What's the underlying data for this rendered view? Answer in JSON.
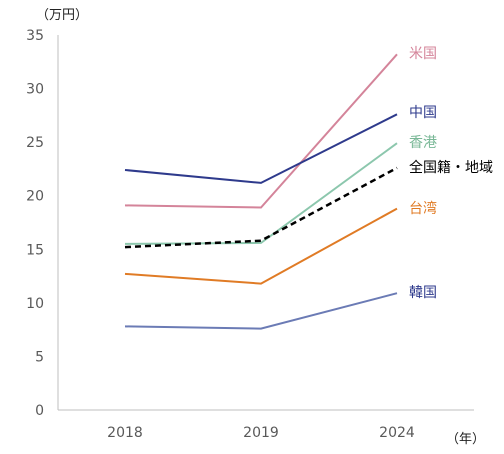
{
  "chart_data": {
    "type": "line",
    "title": "",
    "x_unit_label": "（年）",
    "y_unit_label": "（万円）",
    "categories": [
      "2018",
      "2019",
      "2024"
    ],
    "ylim": [
      0,
      35
    ],
    "yticks": [
      0,
      5,
      10,
      15,
      20,
      25,
      30,
      35
    ],
    "grid": false,
    "legend": "direct labels at line ends (right)",
    "series": [
      {
        "name": "米国",
        "values": [
          19.1,
          18.9,
          33.2
        ],
        "color": "#d4849a",
        "dash": false
      },
      {
        "name": "中国",
        "values": [
          22.4,
          21.2,
          27.6
        ],
        "color": "#2e3a8c",
        "dash": false
      },
      {
        "name": "香港",
        "values": [
          15.5,
          15.6,
          24.9
        ],
        "color": "#8cc7ad",
        "dash": false
      },
      {
        "name": "全国籍・地域",
        "values": [
          15.2,
          15.8,
          22.6
        ],
        "color": "#000000",
        "dash": true
      },
      {
        "name": "台湾",
        "values": [
          12.7,
          11.8,
          18.8
        ],
        "color": "#e07b25",
        "dash": false
      },
      {
        "name": "韓国",
        "values": [
          7.8,
          7.6,
          10.9
        ],
        "color": "#6b7bb5",
        "dash": false
      }
    ]
  }
}
